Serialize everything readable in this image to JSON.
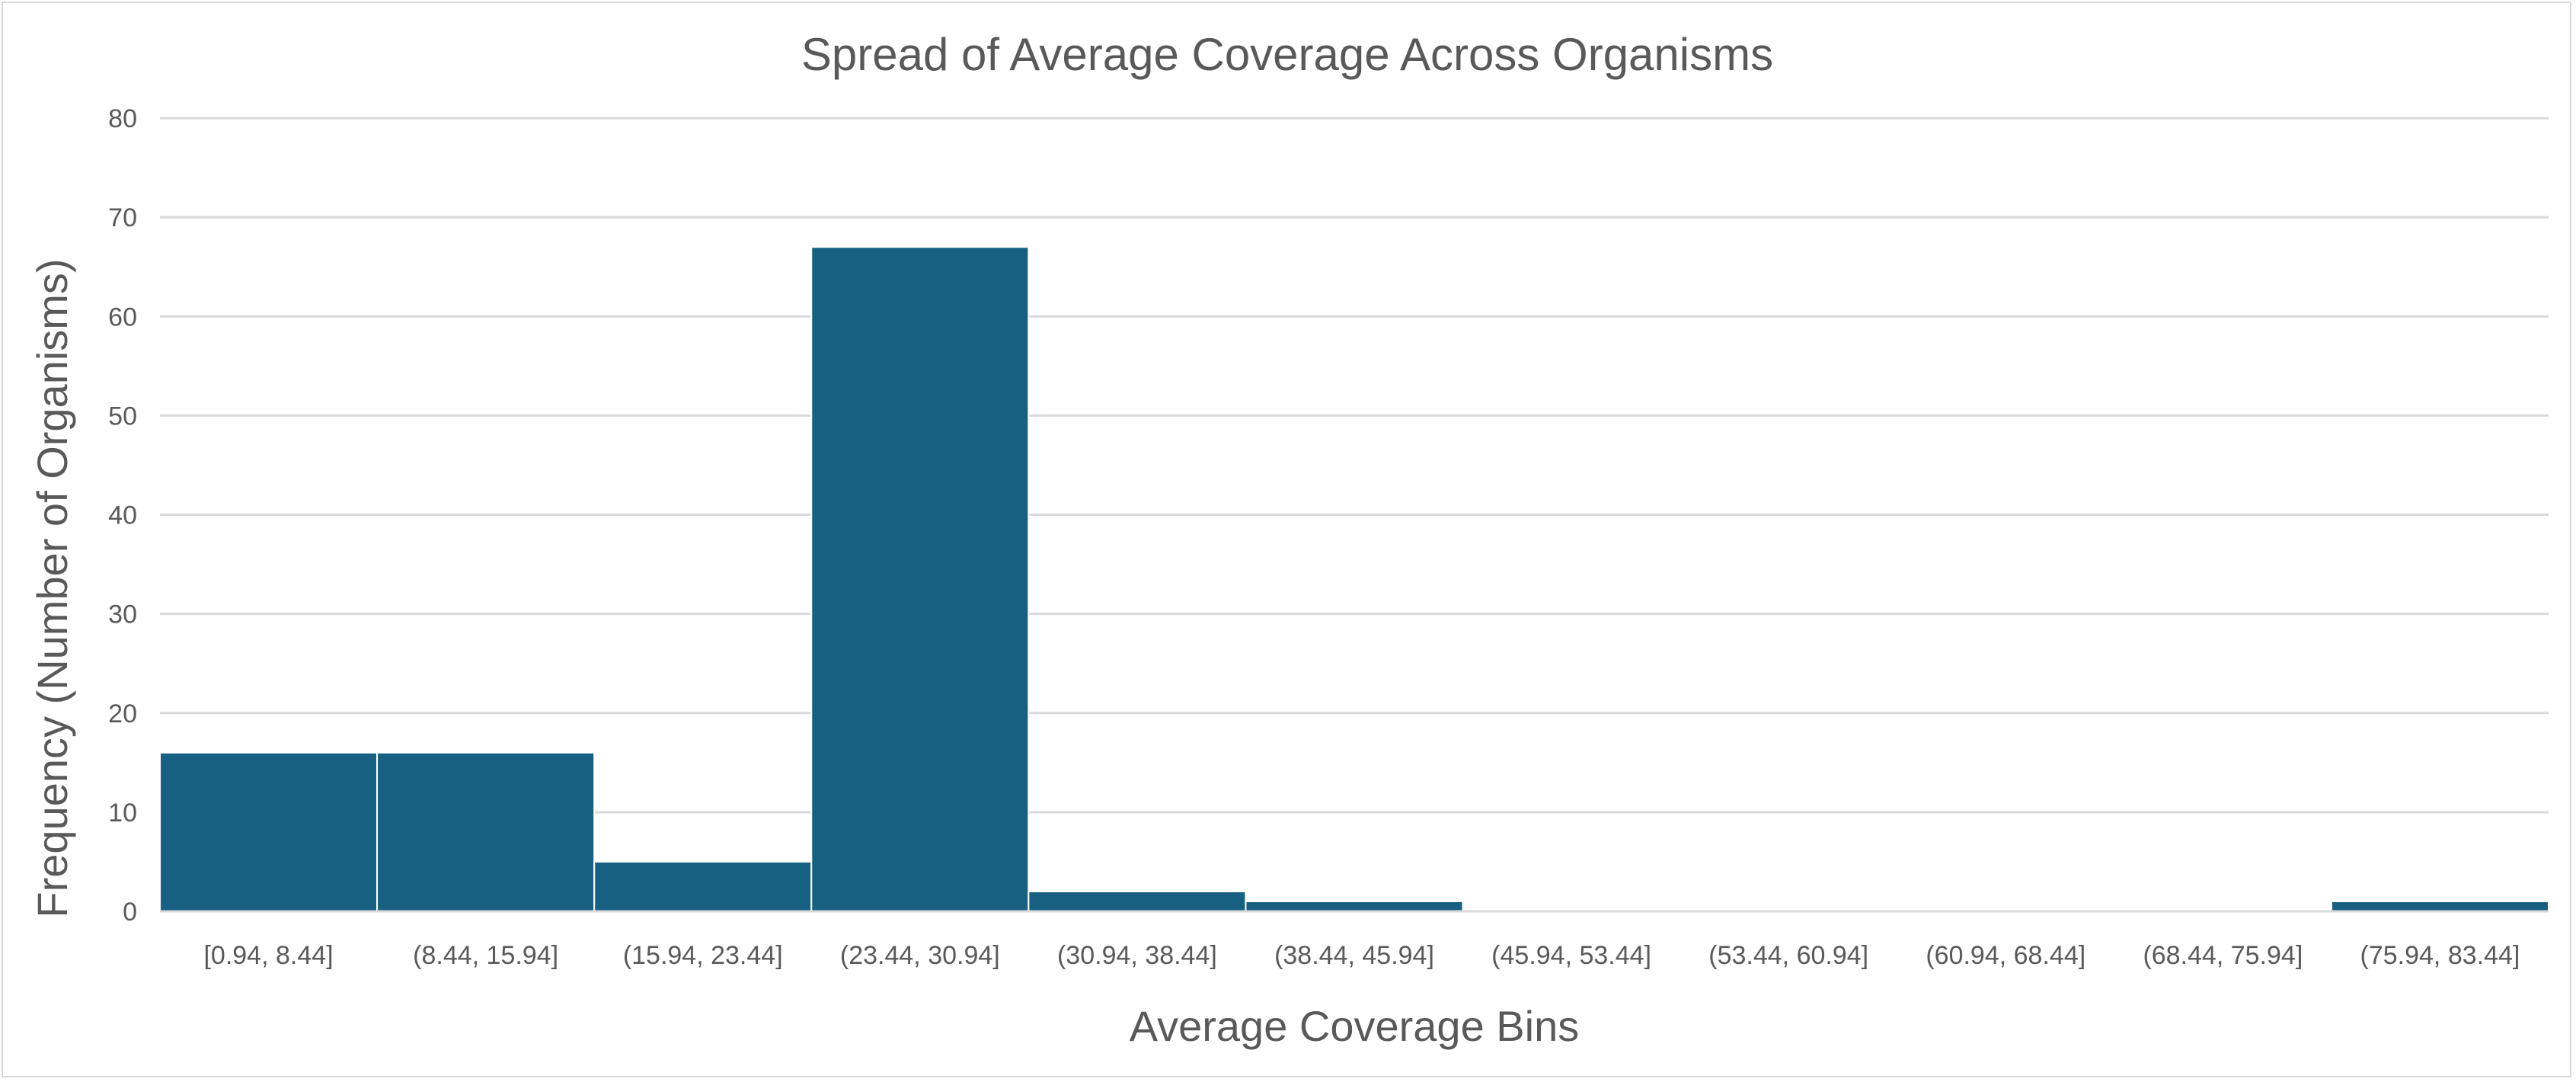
{
  "chart_data": {
    "type": "bar",
    "title": "Spread of Average Coverage Across Organisms",
    "xlabel": "Average Coverage Bins",
    "ylabel": "Frequency (Number of Organisms)",
    "categories": [
      "[0.94, 8.44]",
      "(8.44, 15.94]",
      "(15.94, 23.44]",
      "(23.44, 30.94]",
      "(30.94, 38.44]",
      "(38.44, 45.94]",
      "(45.94, 53.44]",
      "(53.44, 60.94]",
      "(60.94, 68.44]",
      "(68.44, 75.94]",
      "(75.94, 83.44]"
    ],
    "values": [
      16,
      16,
      5,
      67,
      2,
      1,
      0,
      0,
      0,
      0,
      1
    ],
    "ylim": [
      0,
      80
    ],
    "yticks": [
      0,
      10,
      20,
      30,
      40,
      50,
      60,
      70,
      80
    ],
    "grid": true,
    "legend": "none",
    "bar_color": "#176082",
    "gridline_color": "#d9d9d9",
    "text_color": "#595959"
  }
}
